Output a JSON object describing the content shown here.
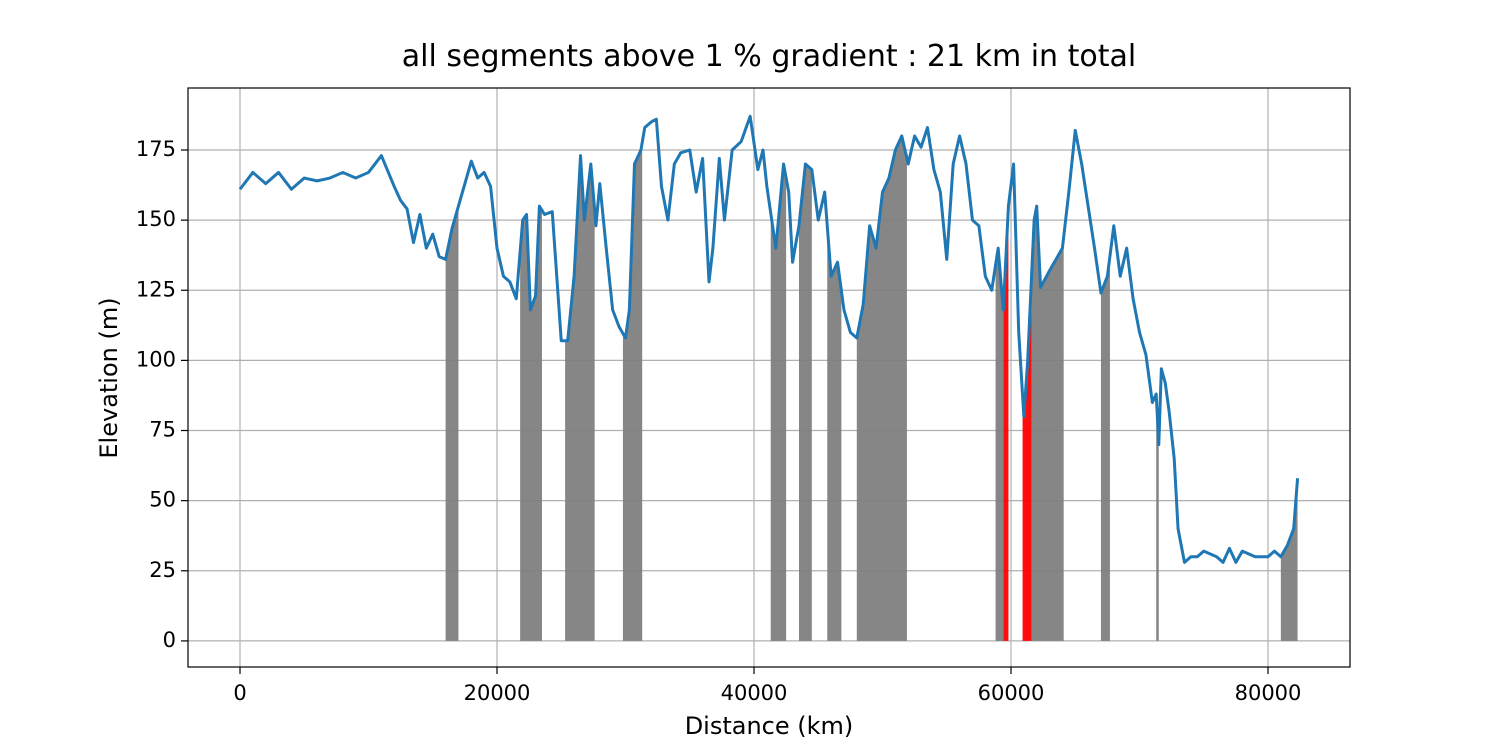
{
  "chart_data": {
    "type": "line",
    "title": "all segments above 1 % gradient : 21 km in total",
    "x_label": "Distance (km)",
    "y_label": "Elevation (m)",
    "xlim": [
      -4047,
      86381
    ],
    "ylim": [
      -9.3,
      197.1
    ],
    "xticks": [
      0,
      20000,
      40000,
      60000,
      80000
    ],
    "yticks": [
      0,
      25,
      50,
      75,
      100,
      125,
      150,
      175
    ],
    "grid": true,
    "series": [
      {
        "color": "#1f77b4",
        "x": [
          0,
          1000,
          2000,
          3000,
          4000,
          5000,
          6000,
          7000,
          8000,
          9000,
          10000,
          11000,
          12000,
          12500,
          13000,
          13500,
          14000,
          14500,
          15000,
          15500,
          16000,
          16500,
          17000,
          17500,
          18000,
          18500,
          19000,
          19500,
          20000,
          20500,
          21000,
          21500,
          22000,
          22300,
          22600,
          23000,
          23300,
          23700,
          24300,
          25000,
          25500,
          26000,
          26500,
          26800,
          27300,
          27700,
          28000,
          28500,
          29000,
          29500,
          30000,
          30300,
          30700,
          31200,
          31500,
          32000,
          32400,
          32800,
          33300,
          33800,
          34300,
          35000,
          35500,
          36000,
          36500,
          36800,
          37300,
          37700,
          38300,
          39000,
          39700,
          40300,
          40700,
          41000,
          41700,
          42300,
          42700,
          43000,
          43500,
          44000,
          44500,
          45000,
          45500,
          46000,
          46500,
          47000,
          47500,
          48000,
          48500,
          49000,
          49500,
          50000,
          50500,
          51000,
          51500,
          52000,
          52500,
          53000,
          53500,
          54000,
          54500,
          55000,
          55500,
          56000,
          56500,
          57000,
          57500,
          58000,
          58500,
          59000,
          59400,
          59800,
          60200,
          60600,
          61000,
          61300,
          61800,
          62000,
          62300,
          63000,
          64000,
          64500,
          65000,
          65500,
          66000,
          66500,
          67000,
          67500,
          68000,
          68500,
          69000,
          69500,
          70000,
          70500,
          71000,
          71300,
          71500,
          71700,
          72000,
          72300,
          72700,
          73000,
          73500,
          74000,
          74500,
          75000,
          76000,
          76500,
          77000,
          77500,
          78000,
          79000,
          80000,
          80500,
          81000,
          81500,
          82000,
          82300
        ],
        "values": [
          161,
          167,
          163,
          167,
          161,
          165,
          164,
          165,
          167,
          165,
          167,
          173,
          162,
          157,
          154,
          142,
          152,
          140,
          145,
          137,
          136,
          147,
          155,
          163,
          171,
          165,
          167,
          162,
          140,
          130,
          128,
          122,
          150,
          152,
          118,
          123,
          155,
          152,
          153,
          107,
          107,
          130,
          173,
          150,
          170,
          148,
          163,
          140,
          118,
          112,
          108,
          118,
          170,
          175,
          183,
          185,
          186,
          162,
          150,
          170,
          174,
          175,
          160,
          172,
          128,
          140,
          172,
          150,
          175,
          178,
          187,
          168,
          175,
          162,
          140,
          170,
          160,
          135,
          148,
          170,
          168,
          150,
          160,
          130,
          135,
          118,
          110,
          108,
          120,
          148,
          140,
          160,
          165,
          175,
          180,
          170,
          180,
          176,
          183,
          168,
          160,
          136,
          170,
          180,
          170,
          150,
          148,
          130,
          125,
          140,
          118,
          155,
          170,
          110,
          80,
          100,
          150,
          155,
          126,
          132,
          140,
          160,
          182,
          170,
          155,
          140,
          124,
          130,
          148,
          130,
          140,
          122,
          110,
          102,
          85,
          88,
          70,
          97,
          92,
          82,
          65,
          40,
          28,
          30,
          30,
          32,
          30,
          28,
          33,
          28,
          32,
          30,
          30,
          32,
          30,
          34,
          40,
          58
        ]
      }
    ],
    "spans": [
      {
        "start": 16000,
        "end": 17000,
        "color": "#808080"
      },
      {
        "start": 21800,
        "end": 23500,
        "color": "#808080"
      },
      {
        "start": 25300,
        "end": 27600,
        "color": "#808080"
      },
      {
        "start": 29800,
        "end": 31300,
        "color": "#808080"
      },
      {
        "start": 41300,
        "end": 42500,
        "color": "#808080"
      },
      {
        "start": 43500,
        "end": 44500,
        "color": "#808080"
      },
      {
        "start": 45700,
        "end": 46800,
        "color": "#808080"
      },
      {
        "start": 48000,
        "end": 51900,
        "color": "#808080"
      },
      {
        "start": 58800,
        "end": 59400,
        "color": "#808080"
      },
      {
        "start": 59400,
        "end": 59800,
        "color": "#ff0000"
      },
      {
        "start": 60900,
        "end": 61600,
        "color": "#ff0000"
      },
      {
        "start": 61600,
        "end": 64100,
        "color": "#808080"
      },
      {
        "start": 67000,
        "end": 67700,
        "color": "#808080"
      },
      {
        "start": 71300,
        "end": 71500,
        "color": "#808080"
      },
      {
        "start": 81000,
        "end": 82300,
        "color": "#808080"
      }
    ]
  }
}
